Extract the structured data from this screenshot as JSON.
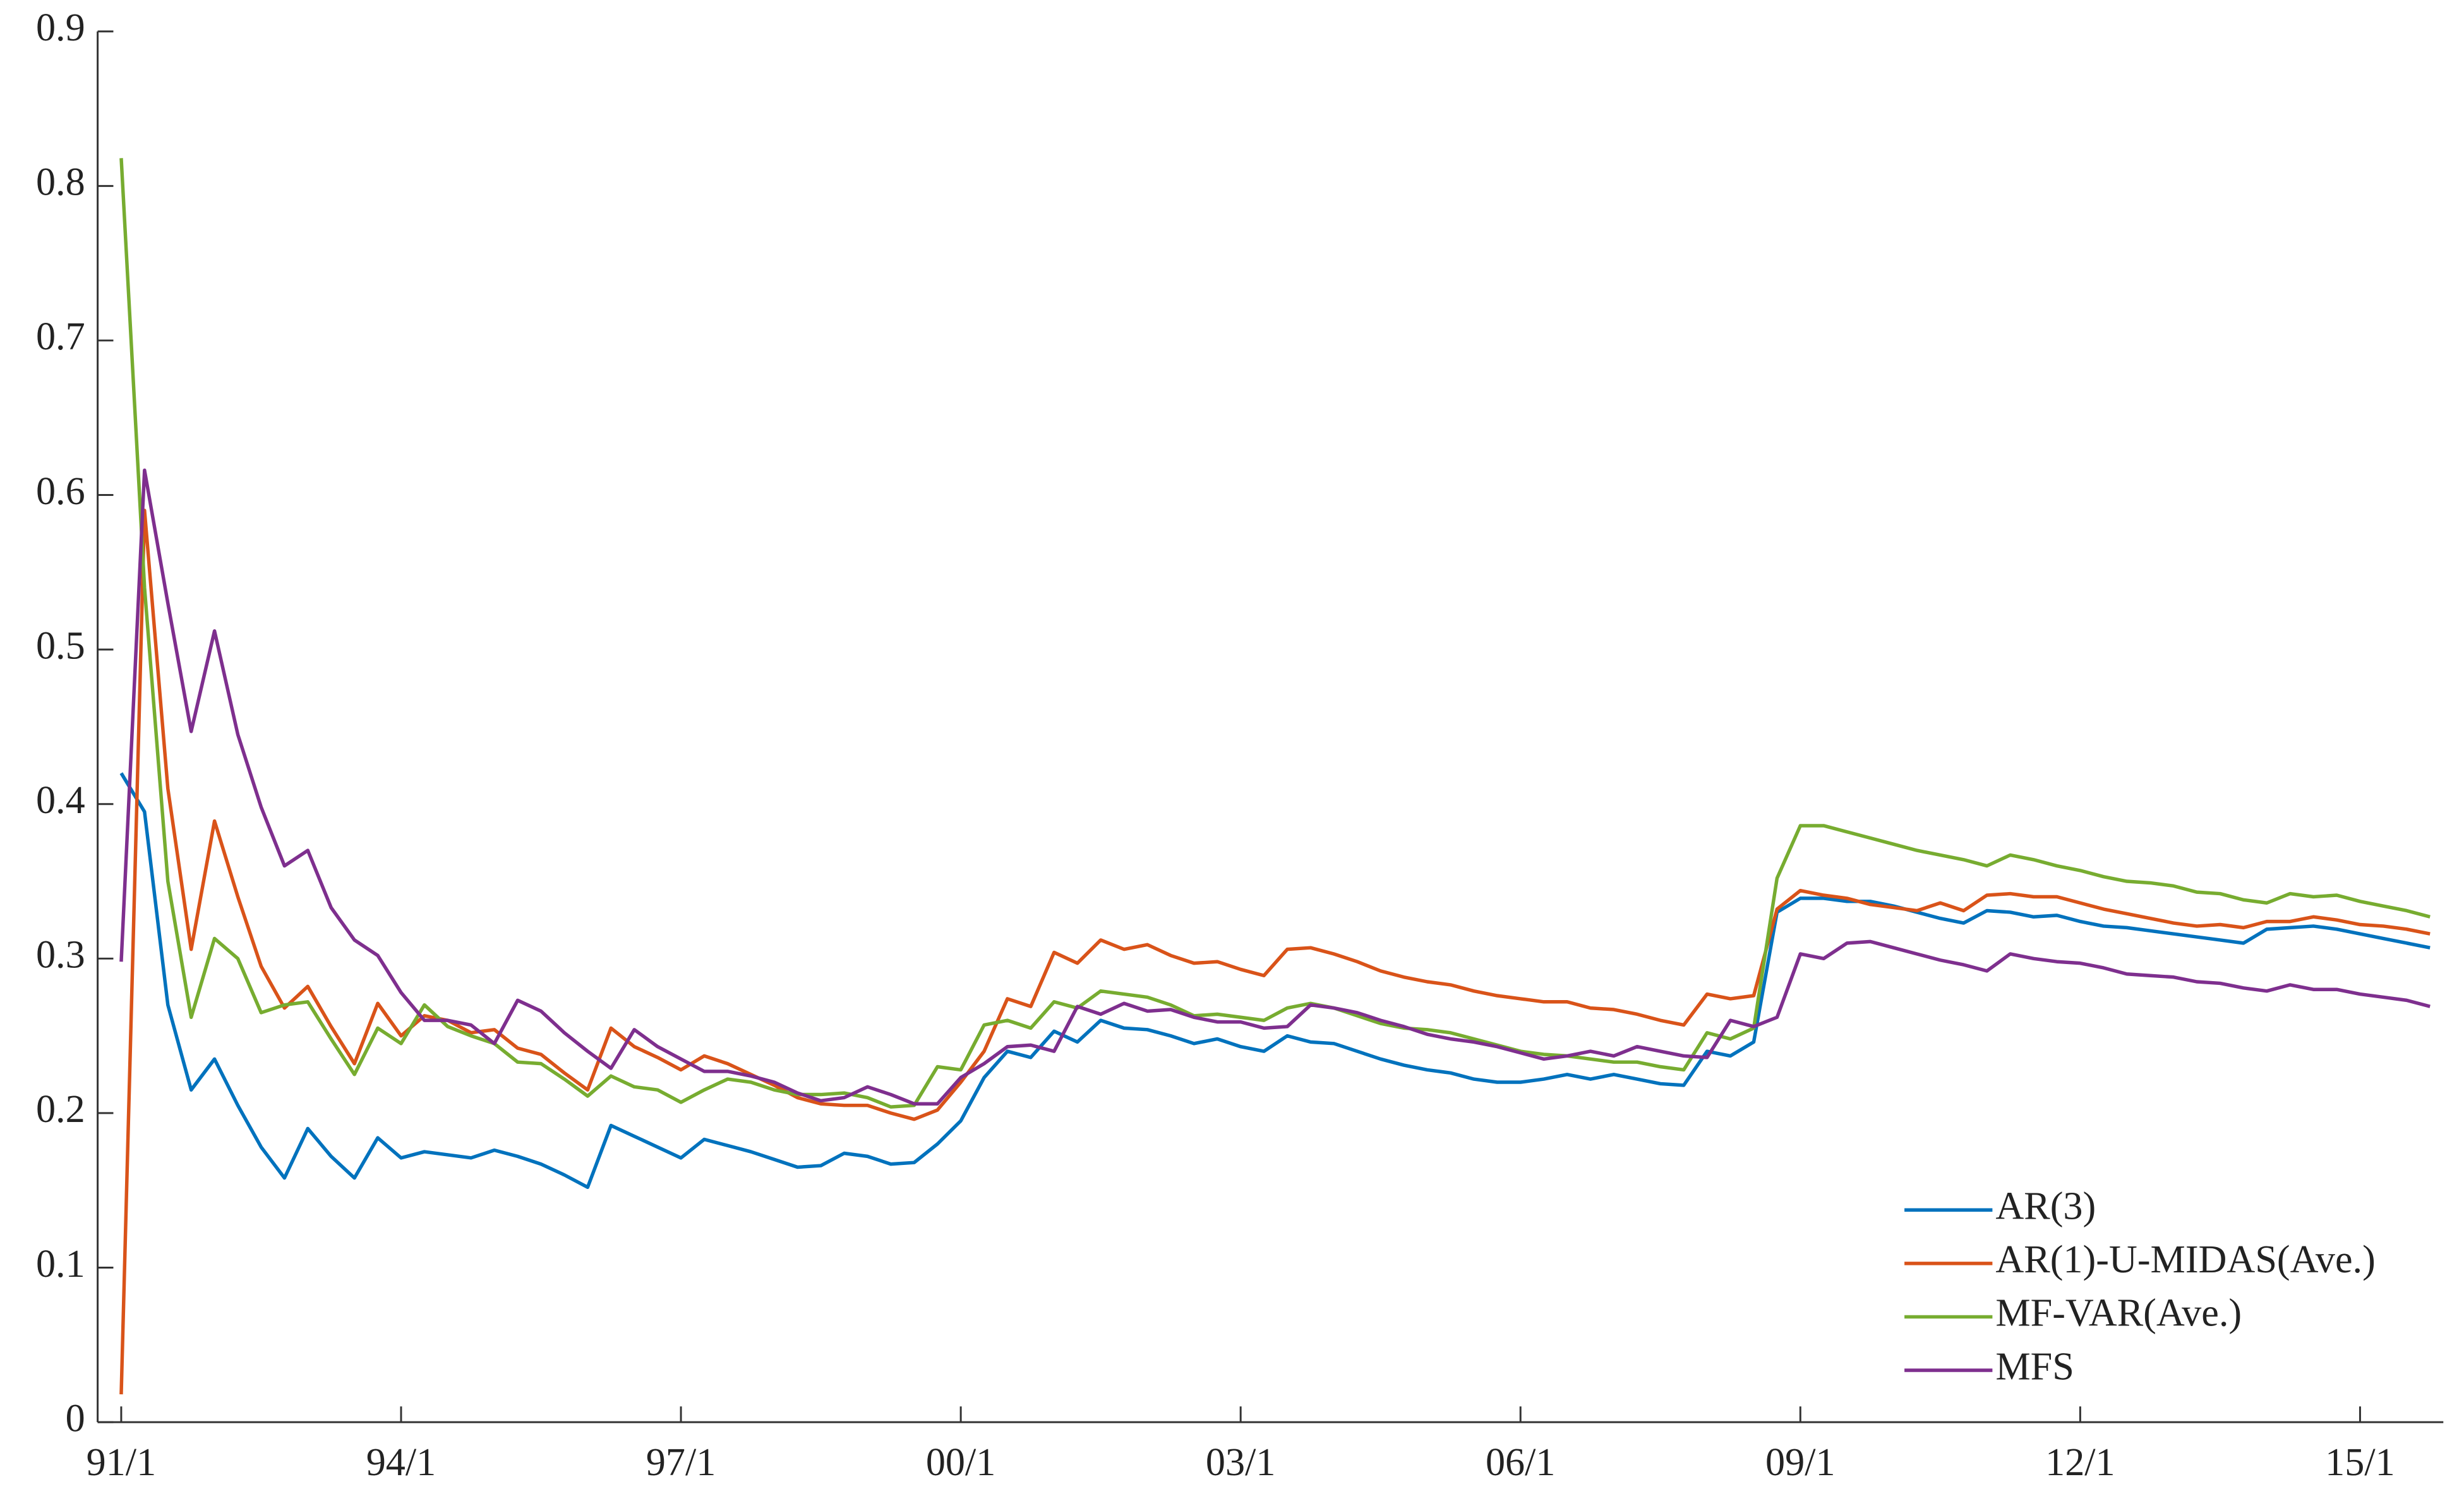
{
  "chart_data": {
    "type": "line",
    "categories": [
      "91/1",
      null,
      null,
      null,
      null,
      null,
      null,
      null,
      null,
      null,
      null,
      null,
      "94/1",
      null,
      null,
      null,
      null,
      null,
      null,
      null,
      null,
      null,
      null,
      null,
      "97/1",
      null,
      null,
      null,
      null,
      null,
      null,
      null,
      null,
      null,
      null,
      null,
      "00/1",
      null,
      null,
      null,
      null,
      null,
      null,
      null,
      null,
      null,
      null,
      null,
      "03/1",
      null,
      null,
      null,
      null,
      null,
      null,
      null,
      null,
      null,
      null,
      null,
      "06/1",
      null,
      null,
      null,
      null,
      null,
      null,
      null,
      null,
      null,
      null,
      null,
      "09/1",
      null,
      null,
      null,
      null,
      null,
      null,
      null,
      null,
      null,
      null,
      null,
      "12/1",
      null,
      null,
      null,
      null,
      null,
      null,
      null,
      null,
      null,
      null,
      null,
      "15/1",
      null,
      null,
      null
    ],
    "ylim": [
      0,
      0.9
    ],
    "yticks": [
      0,
      0.1,
      0.2,
      0.3,
      0.4,
      0.5,
      0.6,
      0.7,
      0.8,
      0.9
    ],
    "legend": "lower right",
    "series": [
      {
        "name": "AR(3)",
        "color": "#0072bd",
        "values": [
          0.42,
          0.395,
          0.27,
          0.215,
          0.235,
          0.205,
          0.178,
          0.158,
          0.19,
          0.172,
          0.158,
          0.184,
          0.171,
          0.175,
          0.173,
          0.171,
          0.176,
          0.172,
          0.167,
          0.16,
          0.152,
          0.192,
          0.185,
          0.178,
          0.171,
          0.183,
          0.179,
          0.175,
          0.17,
          0.165,
          0.166,
          0.174,
          0.172,
          0.167,
          0.168,
          0.18,
          0.195,
          0.223,
          0.24,
          0.236,
          0.253,
          0.246,
          0.26,
          0.255,
          0.254,
          0.25,
          0.245,
          0.248,
          0.243,
          0.24,
          0.25,
          0.246,
          0.245,
          0.24,
          0.235,
          0.231,
          0.228,
          0.226,
          0.222,
          0.22,
          0.22,
          0.222,
          0.225,
          0.222,
          0.225,
          0.222,
          0.219,
          0.218,
          0.24,
          0.237,
          0.246,
          0.33,
          0.339,
          0.339,
          0.337,
          0.337,
          0.334,
          0.33,
          0.326,
          0.323,
          0.331,
          0.33,
          0.327,
          0.328,
          0.324,
          0.321,
          0.32,
          0.318,
          0.316,
          0.314,
          0.312,
          0.31,
          0.319,
          0.32,
          0.321,
          0.319,
          0.316,
          0.313,
          0.31,
          0.307
        ]
      },
      {
        "name": "AR(1)-U-MIDAS(Ave.)",
        "color": "#d95319",
        "values": [
          0.018,
          0.59,
          0.41,
          0.306,
          0.389,
          0.34,
          0.295,
          0.268,
          0.282,
          0.256,
          0.232,
          0.271,
          0.25,
          0.263,
          0.26,
          0.252,
          0.254,
          0.242,
          0.238,
          0.226,
          0.215,
          0.255,
          0.243,
          0.236,
          0.228,
          0.237,
          0.232,
          0.225,
          0.218,
          0.21,
          0.206,
          0.205,
          0.205,
          0.2,
          0.196,
          0.202,
          0.22,
          0.24,
          0.274,
          0.269,
          0.304,
          0.297,
          0.312,
          0.306,
          0.309,
          0.302,
          0.297,
          0.298,
          0.293,
          0.289,
          0.306,
          0.307,
          0.303,
          0.298,
          0.292,
          0.288,
          0.285,
          0.283,
          0.279,
          0.276,
          0.274,
          0.272,
          0.272,
          0.268,
          0.267,
          0.264,
          0.26,
          0.257,
          0.277,
          0.274,
          0.276,
          0.332,
          0.344,
          0.341,
          0.339,
          0.335,
          0.333,
          0.331,
          0.336,
          0.331,
          0.341,
          0.342,
          0.34,
          0.34,
          0.336,
          0.332,
          0.329,
          0.326,
          0.323,
          0.321,
          0.322,
          0.32,
          0.324,
          0.324,
          0.327,
          0.325,
          0.322,
          0.321,
          0.319,
          0.316
        ]
      },
      {
        "name": "MF-VAR(Ave.)",
        "color": "#77ac30",
        "values": [
          0.818,
          0.54,
          0.35,
          0.262,
          0.313,
          0.3,
          0.265,
          0.27,
          0.272,
          0.248,
          0.225,
          0.255,
          0.245,
          0.27,
          0.256,
          0.25,
          0.245,
          0.233,
          0.232,
          0.222,
          0.211,
          0.224,
          0.217,
          0.215,
          0.207,
          0.215,
          0.222,
          0.22,
          0.215,
          0.212,
          0.212,
          0.213,
          0.21,
          0.204,
          0.205,
          0.23,
          0.228,
          0.257,
          0.26,
          0.255,
          0.272,
          0.268,
          0.279,
          0.277,
          0.275,
          0.27,
          0.263,
          0.264,
          0.262,
          0.26,
          0.268,
          0.271,
          0.268,
          0.263,
          0.258,
          0.255,
          0.254,
          0.252,
          0.248,
          0.244,
          0.24,
          0.238,
          0.237,
          0.235,
          0.233,
          0.233,
          0.23,
          0.228,
          0.252,
          0.248,
          0.255,
          0.352,
          0.386,
          0.386,
          0.382,
          0.378,
          0.374,
          0.37,
          0.367,
          0.364,
          0.36,
          0.367,
          0.364,
          0.36,
          0.357,
          0.353,
          0.35,
          0.349,
          0.347,
          0.343,
          0.342,
          0.338,
          0.336,
          0.342,
          0.34,
          0.341,
          0.337,
          0.334,
          0.331,
          0.327
        ]
      },
      {
        "name": "MFS",
        "color": "#7e2f8e",
        "values": [
          0.298,
          0.616,
          0.53,
          0.447,
          0.512,
          0.445,
          0.398,
          0.36,
          0.37,
          0.333,
          0.312,
          0.302,
          0.278,
          0.26,
          0.26,
          0.257,
          0.245,
          0.273,
          0.266,
          0.252,
          0.24,
          0.229,
          0.254,
          0.243,
          0.235,
          0.227,
          0.227,
          0.224,
          0.22,
          0.213,
          0.208,
          0.21,
          0.217,
          0.212,
          0.206,
          0.206,
          0.223,
          0.232,
          0.243,
          0.244,
          0.24,
          0.269,
          0.264,
          0.271,
          0.266,
          0.267,
          0.262,
          0.259,
          0.259,
          0.255,
          0.256,
          0.27,
          0.268,
          0.265,
          0.26,
          0.256,
          0.251,
          0.248,
          0.246,
          0.243,
          0.239,
          0.235,
          0.237,
          0.24,
          0.237,
          0.243,
          0.24,
          0.237,
          0.236,
          0.26,
          0.256,
          0.262,
          0.303,
          0.3,
          0.31,
          0.311,
          0.307,
          0.303,
          0.299,
          0.296,
          0.292,
          0.303,
          0.3,
          0.298,
          0.297,
          0.294,
          0.29,
          0.289,
          0.288,
          0.285,
          0.284,
          0.281,
          0.279,
          0.283,
          0.28,
          0.28,
          0.277,
          0.275,
          0.273,
          0.269
        ]
      }
    ]
  }
}
